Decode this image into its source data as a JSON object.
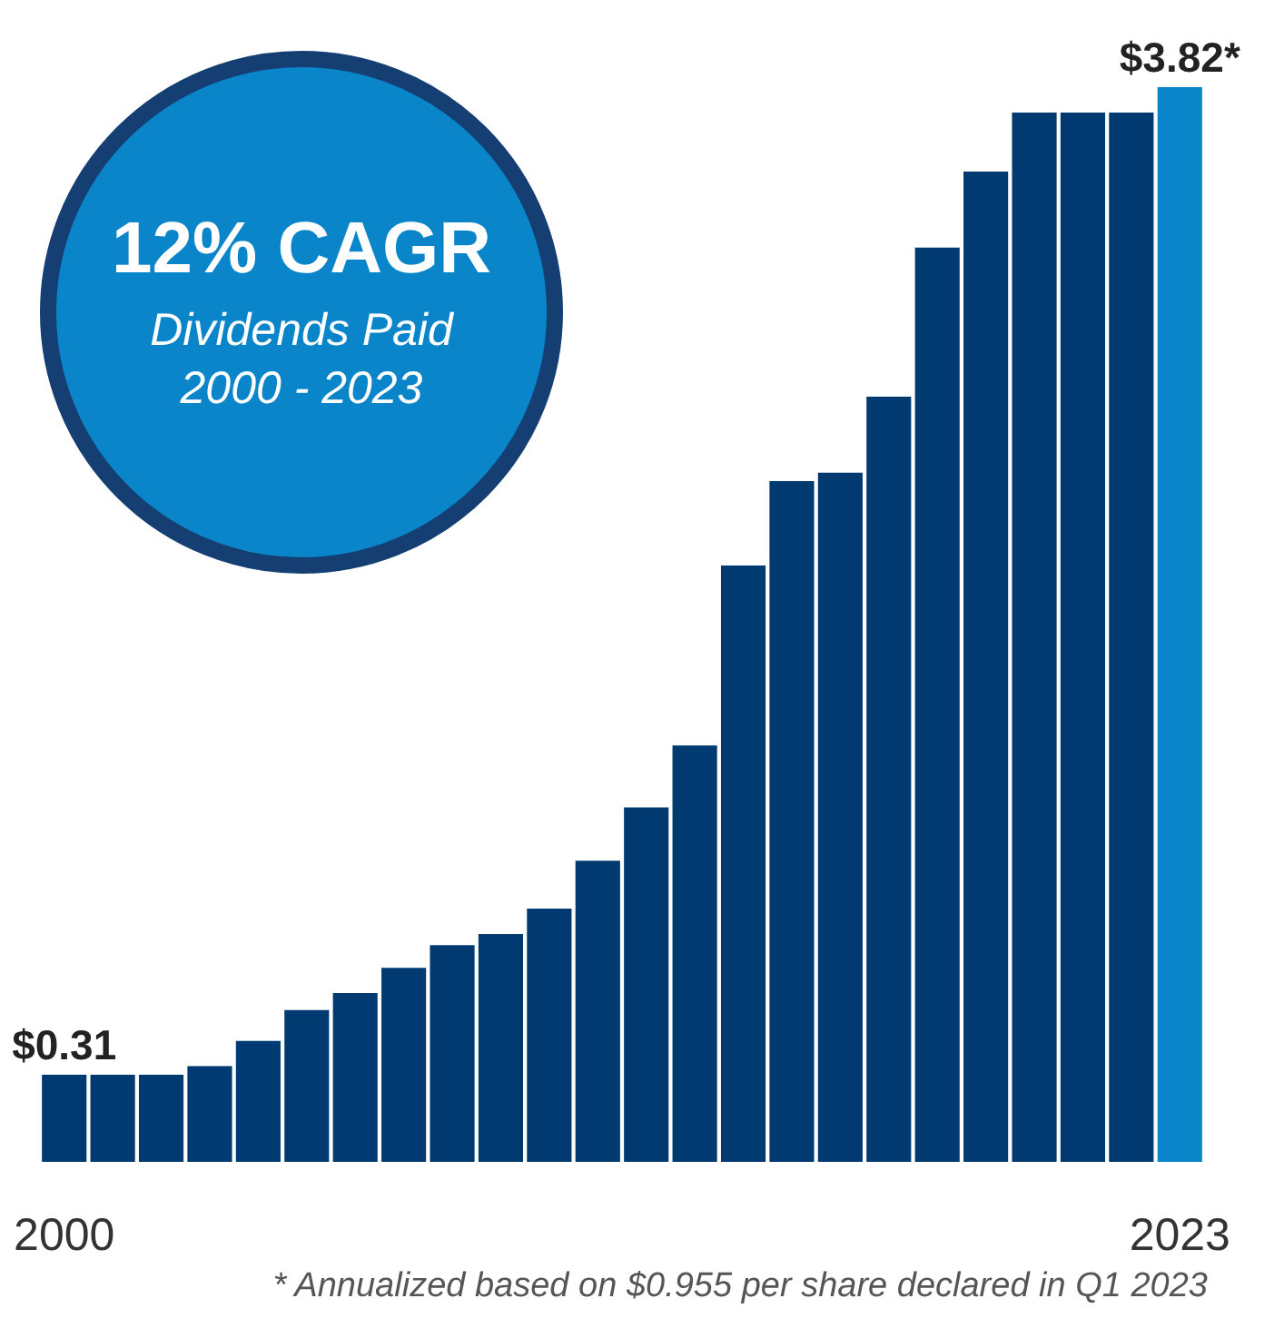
{
  "chart_data": {
    "type": "bar",
    "title": "12% CAGR",
    "annotations": [
      "Dividends Paid",
      "2000 - 2023",
      "* Annualized based on $0.955 per share declared in Q1 2023"
    ],
    "categories": [
      "2000",
      null,
      null,
      null,
      null,
      null,
      null,
      null,
      null,
      null,
      null,
      null,
      null,
      null,
      null,
      null,
      null,
      null,
      null,
      null,
      null,
      null,
      null,
      "2023"
    ],
    "values": [
      0.31,
      0.31,
      0.31,
      0.34,
      0.43,
      0.54,
      0.6,
      0.69,
      0.77,
      0.81,
      0.9,
      1.07,
      1.26,
      1.48,
      2.12,
      2.42,
      2.45,
      2.72,
      3.25,
      3.52,
      3.73,
      3.73,
      3.73,
      3.82
    ],
    "value_labels": [
      "$0.31",
      null,
      null,
      null,
      null,
      null,
      null,
      null,
      null,
      null,
      null,
      null,
      null,
      null,
      null,
      null,
      null,
      null,
      null,
      null,
      null,
      null,
      null,
      "$3.82*"
    ],
    "colors": [
      "#003a70",
      "#003a70",
      "#003a70",
      "#003a70",
      "#003a70",
      "#003a70",
      "#003a70",
      "#003a70",
      "#003a70",
      "#003a70",
      "#003a70",
      "#003a70",
      "#003a70",
      "#003a70",
      "#003a70",
      "#003a70",
      "#003a70",
      "#003a70",
      "#003a70",
      "#003a70",
      "#003a70",
      "#003a70",
      "#003a70",
      "#0a85c9"
    ]
  }
}
